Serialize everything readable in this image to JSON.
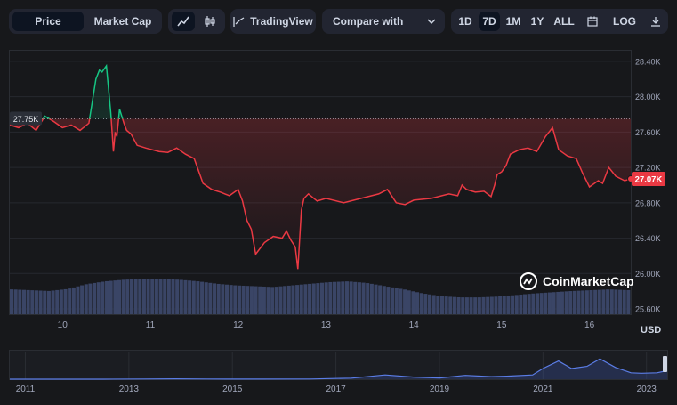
{
  "toolbar": {
    "price_label": "Price",
    "market_cap_label": "Market Cap",
    "tradingview_label": "TradingView",
    "compare_label": "Compare with",
    "ranges": [
      "1D",
      "7D",
      "1M",
      "1Y",
      "ALL"
    ],
    "active_range": "7D",
    "log_label": "LOG"
  },
  "watermark": "CoinMarketCap",
  "currency_label": "USD",
  "colors": {
    "up": "#16c784",
    "down": "#ea3943",
    "volume": "#3a4566",
    "background": "#17181b"
  },
  "chart_data": {
    "type": "line",
    "x_tick_labels": [
      "10",
      "11",
      "12",
      "13",
      "14",
      "15",
      "16"
    ],
    "y_tick_labels": [
      "28.40K",
      "28.00K",
      "27.60K",
      "27.20K",
      "26.80K",
      "26.40K",
      "26.00K",
      "25.60K"
    ],
    "y_ticks": [
      28400,
      28000,
      27600,
      27200,
      26800,
      26400,
      26000,
      25600
    ],
    "ylim": [
      25540,
      28520
    ],
    "xlim": [
      9.4,
      16.47
    ],
    "reference_value": 27750,
    "reference_label": "27.75K",
    "current_value": 27070,
    "current_label": "27.07K",
    "series": [
      {
        "x": [
          9.4,
          9.5,
          9.6,
          9.7,
          9.8,
          9.9,
          10.0,
          10.1,
          10.2,
          10.3,
          10.38,
          10.42,
          10.45,
          10.5,
          10.55,
          10.58,
          10.6,
          10.62,
          10.65,
          10.7,
          10.73,
          10.78,
          10.85,
          10.95,
          11.1,
          11.2,
          11.3,
          11.4,
          11.5,
          11.6,
          11.7,
          11.8,
          11.9,
          12.0,
          12.05,
          12.1,
          12.15,
          12.2,
          12.3,
          12.4,
          12.5,
          12.55,
          12.6,
          12.65,
          12.68,
          12.72,
          12.75,
          12.8,
          12.9,
          13.0,
          13.2,
          13.4,
          13.6,
          13.7,
          13.8,
          13.9,
          14.0,
          14.2,
          14.4,
          14.5,
          14.55,
          14.6,
          14.7,
          14.8,
          14.88,
          14.92,
          14.95,
          15.0,
          15.05,
          15.1,
          15.2,
          15.3,
          15.4,
          15.5,
          15.58,
          15.65,
          15.75,
          15.85,
          15.92,
          16.0,
          16.1,
          16.15,
          16.22,
          16.3,
          16.4,
          16.47
        ],
        "values": [
          27680,
          27650,
          27700,
          27620,
          27780,
          27720,
          27650,
          27680,
          27620,
          27700,
          28200,
          28300,
          28280,
          28350,
          27820,
          27380,
          27600,
          27550,
          27860,
          27700,
          27620,
          27580,
          27450,
          27420,
          27380,
          27370,
          27420,
          27350,
          27300,
          27020,
          26950,
          26920,
          26880,
          26950,
          26820,
          26600,
          26500,
          26220,
          26350,
          26420,
          26400,
          26480,
          26380,
          26300,
          26050,
          26720,
          26850,
          26900,
          26820,
          26850,
          26800,
          26850,
          26900,
          26950,
          26800,
          26780,
          26830,
          26850,
          26900,
          26880,
          27000,
          26950,
          26920,
          26930,
          26870,
          27000,
          27120,
          27150,
          27220,
          27350,
          27400,
          27420,
          27380,
          27550,
          27650,
          27400,
          27330,
          27300,
          27140,
          26980,
          27050,
          27020,
          27200,
          27100,
          27050,
          27070
        ]
      }
    ],
    "volume_relative": [
      0.62,
      0.6,
      0.58,
      0.63,
      0.75,
      0.82,
      0.86,
      0.88,
      0.88,
      0.86,
      0.82,
      0.76,
      0.72,
      0.7,
      0.68,
      0.72,
      0.76,
      0.8,
      0.82,
      0.78,
      0.7,
      0.62,
      0.52,
      0.45,
      0.42,
      0.42,
      0.44,
      0.48,
      0.52,
      0.55,
      0.58,
      0.6,
      0.62,
      0.6
    ],
    "navigator": {
      "x_tick_labels": [
        "2011",
        "2013",
        "2015",
        "2017",
        "2019",
        "2021",
        "2023"
      ],
      "xlim": [
        2010.7,
        2023.4
      ],
      "years": [
        2010.7,
        2011.5,
        2012.5,
        2013.3,
        2013.9,
        2014.5,
        2015.5,
        2016.5,
        2017.3,
        2017.95,
        2018.5,
        2019.0,
        2019.5,
        2020.0,
        2020.3,
        2020.8,
        2021.0,
        2021.3,
        2021.55,
        2021.85,
        2022.1,
        2022.4,
        2022.7,
        2022.9,
        2023.2,
        2023.4
      ],
      "values_relative": [
        0.0,
        0.0,
        0.0,
        0.01,
        0.015,
        0.01,
        0.005,
        0.01,
        0.05,
        0.2,
        0.1,
        0.06,
        0.18,
        0.12,
        0.14,
        0.2,
        0.5,
        0.85,
        0.5,
        0.6,
        0.95,
        0.55,
        0.3,
        0.28,
        0.3,
        0.4
      ]
    }
  }
}
